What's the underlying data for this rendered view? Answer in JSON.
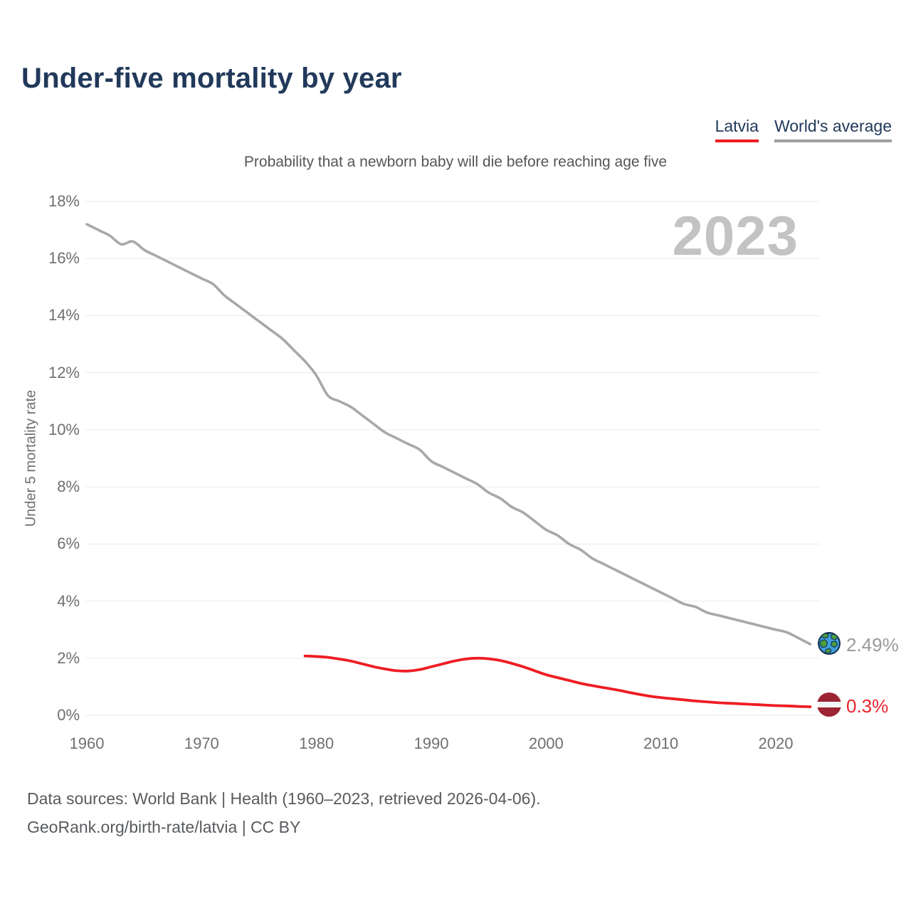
{
  "title": "Under-five mortality by year",
  "subtitle": "Probability that a newborn baby will die before reaching age five",
  "watermark": "2023",
  "legend": {
    "items": [
      {
        "label": "Latvia",
        "color": "#ee1d23"
      },
      {
        "label": "World's average",
        "color": "#9e9e9e"
      }
    ]
  },
  "end_labels": {
    "world": {
      "icon": "globe",
      "value": "2.49%"
    },
    "latvia": {
      "icon": "latvia-flag",
      "value": "0.3%"
    }
  },
  "footer": {
    "line1": "Data sources: World Bank | Health (1960–2023, retrieved 2026-04-06).",
    "line2": "GeoRank.org/birth-rate/latvia | CC BY"
  },
  "colors": {
    "title_navy": "#21395a",
    "latvia_red": "#ee1d23",
    "world_gray": "#a8a8a8",
    "flag_carmine": "#9d2433",
    "watermark_gray": "#c3c3c3",
    "grid_gray": "#eaeaea"
  },
  "chart_data": {
    "type": "line",
    "title": "Under-five mortality by year",
    "subtitle": "Probability that a newborn baby will die before reaching age five",
    "xlabel": "",
    "ylabel": "Under 5 mortality rate",
    "ylim": [
      0,
      18
    ],
    "xlim": [
      1960,
      2026
    ],
    "grid": "horizontal",
    "legend_position": "top-right",
    "y_ticks": [
      {
        "value": 0,
        "label": "0%"
      },
      {
        "value": 2,
        "label": "2%"
      },
      {
        "value": 4,
        "label": "4%"
      },
      {
        "value": 6,
        "label": "6%"
      },
      {
        "value": 8,
        "label": "8%"
      },
      {
        "value": 10,
        "label": "10%"
      },
      {
        "value": 12,
        "label": "12%"
      },
      {
        "value": 14,
        "label": "14%"
      },
      {
        "value": 16,
        "label": "16%"
      },
      {
        "value": 18,
        "label": "18%"
      }
    ],
    "x_ticks": [
      {
        "value": 1960,
        "label": "1960"
      },
      {
        "value": 1970,
        "label": "1970"
      },
      {
        "value": 1980,
        "label": "1980"
      },
      {
        "value": 1990,
        "label": "1990"
      },
      {
        "value": 2000,
        "label": "2000"
      },
      {
        "value": 2010,
        "label": "2010"
      },
      {
        "value": 2020,
        "label": "2020"
      }
    ],
    "series": [
      {
        "name": "World's average",
        "color": "#a8a8a8",
        "stroke_width": 3.6,
        "end_label": "2.49%",
        "years": [
          1960,
          1961,
          1962,
          1963,
          1964,
          1965,
          1966,
          1967,
          1968,
          1969,
          1970,
          1971,
          1972,
          1973,
          1974,
          1975,
          1976,
          1977,
          1978,
          1979,
          1980,
          1981,
          1982,
          1983,
          1984,
          1985,
          1986,
          1987,
          1988,
          1989,
          1990,
          1991,
          1992,
          1993,
          1994,
          1995,
          1996,
          1997,
          1998,
          1999,
          2000,
          2001,
          2002,
          2003,
          2004,
          2005,
          2006,
          2007,
          2008,
          2009,
          2010,
          2011,
          2012,
          2013,
          2014,
          2015,
          2016,
          2017,
          2018,
          2019,
          2020,
          2021,
          2022,
          2023
        ],
        "values": [
          17.2,
          17.0,
          16.8,
          16.5,
          16.6,
          16.3,
          16.1,
          15.9,
          15.7,
          15.5,
          15.3,
          15.1,
          14.7,
          14.4,
          14.1,
          13.8,
          13.5,
          13.2,
          12.8,
          12.4,
          11.9,
          11.2,
          11.0,
          10.8,
          10.5,
          10.2,
          9.9,
          9.7,
          9.5,
          9.3,
          8.9,
          8.7,
          8.5,
          8.3,
          8.1,
          7.8,
          7.6,
          7.3,
          7.1,
          6.8,
          6.5,
          6.3,
          6.0,
          5.8,
          5.5,
          5.3,
          5.1,
          4.9,
          4.7,
          4.5,
          4.3,
          4.1,
          3.9,
          3.8,
          3.6,
          3.5,
          3.4,
          3.3,
          3.2,
          3.1,
          3.0,
          2.9,
          2.7,
          2.49
        ]
      },
      {
        "name": "Latvia",
        "color": "#ee1d23",
        "stroke_width": 3.8,
        "end_label": "0.3%",
        "years": [
          1979,
          1980,
          1981,
          1982,
          1983,
          1984,
          1985,
          1986,
          1987,
          1988,
          1989,
          1990,
          1991,
          1992,
          1993,
          1994,
          1995,
          1996,
          1997,
          1998,
          1999,
          2000,
          2001,
          2002,
          2003,
          2004,
          2005,
          2006,
          2007,
          2008,
          2009,
          2010,
          2011,
          2012,
          2013,
          2014,
          2015,
          2016,
          2017,
          2018,
          2019,
          2020,
          2021,
          2022,
          2023
        ],
        "values": [
          2.08,
          2.06,
          2.03,
          1.97,
          1.9,
          1.8,
          1.7,
          1.62,
          1.56,
          1.55,
          1.6,
          1.7,
          1.8,
          1.9,
          1.97,
          2.0,
          1.98,
          1.92,
          1.82,
          1.7,
          1.56,
          1.42,
          1.32,
          1.22,
          1.12,
          1.04,
          0.97,
          0.9,
          0.82,
          0.74,
          0.67,
          0.62,
          0.58,
          0.54,
          0.5,
          0.47,
          0.44,
          0.42,
          0.4,
          0.38,
          0.36,
          0.34,
          0.33,
          0.31,
          0.3
        ]
      }
    ]
  }
}
